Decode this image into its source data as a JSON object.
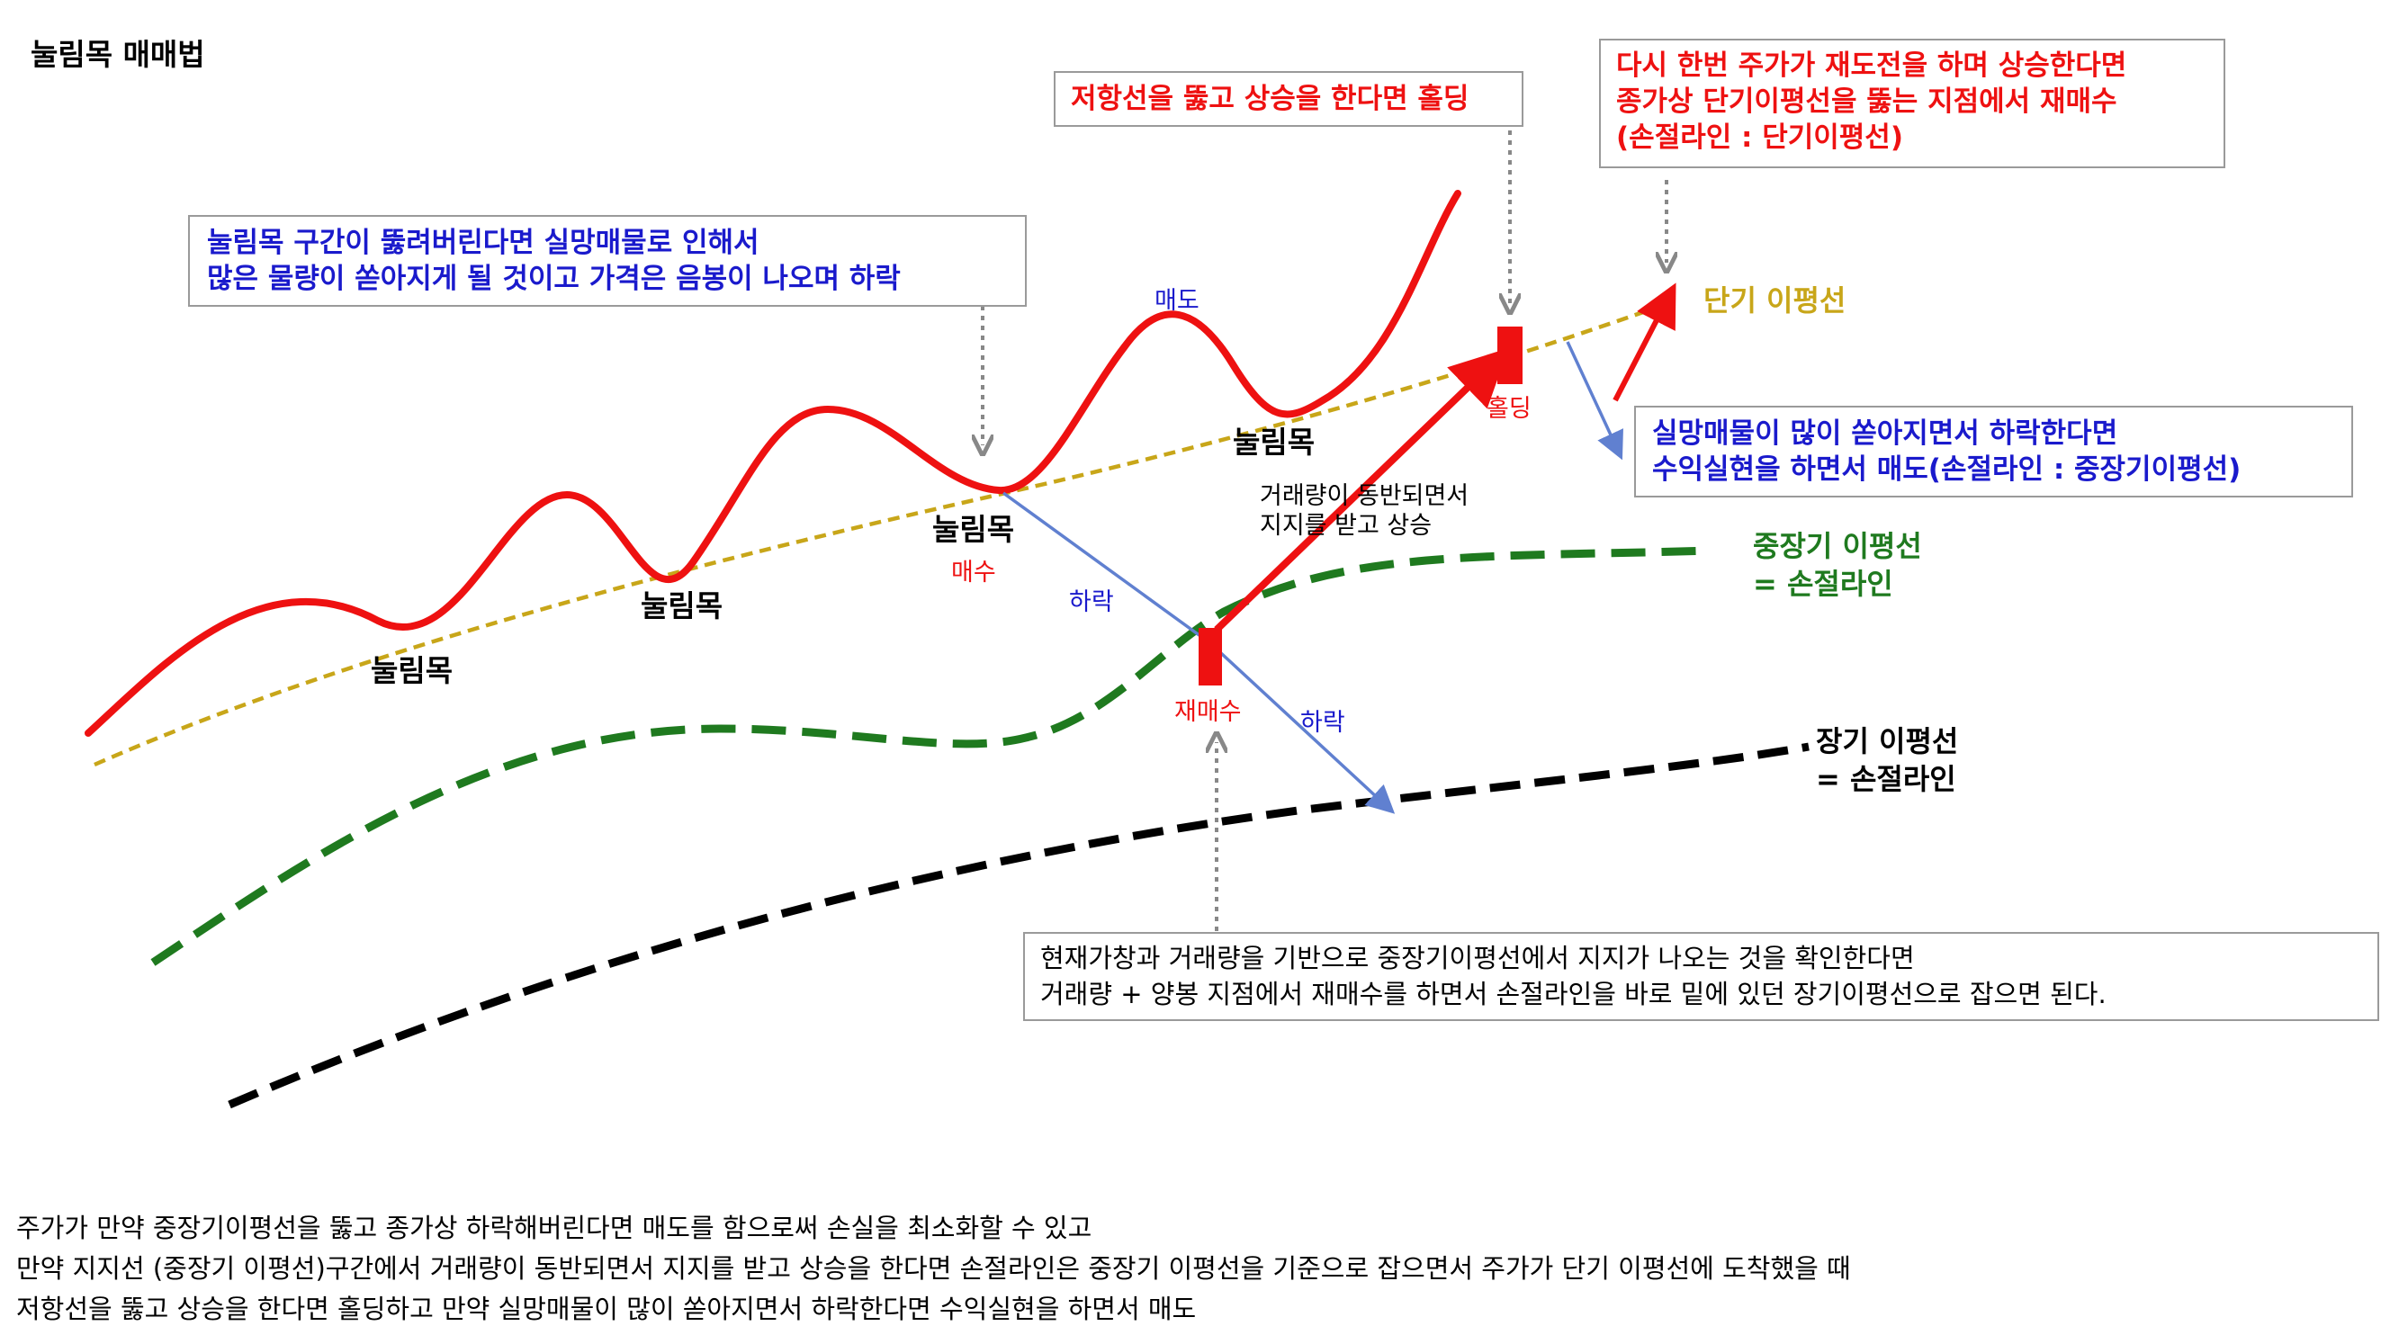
{
  "title": "눌림목 매매법",
  "labels": {
    "pullback": [
      "눌림목",
      "눌림목",
      "눌림목",
      "눌림목"
    ],
    "buy": "매수",
    "sell": "매도",
    "fall_1": "하락",
    "fall_2": "하락",
    "rebuy": "재매수",
    "holding": "홀딩",
    "volume_support": [
      "거래량이 동반되면서",
      "지지를 받고 상승"
    ]
  },
  "lines": {
    "short_term": "단기 이평선",
    "mid_term": [
      "중장기 이평선",
      "= 손절라인"
    ],
    "long_term": [
      "장기 이평선",
      "= 손절라인"
    ]
  },
  "callouts": {
    "pullback_break": [
      "눌림목 구간이 뚫려버린다면 실망매물로 인해서",
      "많은 물량이 쏟아지게 될 것이고 가격은 음봉이 나오며 하락"
    ],
    "resistance_hold": "저항선을 뚫고 상승을 한다면 홀딩",
    "rechallenge": [
      "다시 한번 주가가 재도전을 하며 상승한다면",
      "종가상 단기이평선을 뚫는 지점에서 재매수",
      "(손절라인 : 단기이평선)"
    ],
    "profit_take": [
      "실망매물이 많이 쏟아지면서 하락한다면",
      "수익실현을 하면서 매도(손절라인 : 중장기이평선)"
    ],
    "rebuy_note": [
      "현재가창과 거래량을 기반으로 중장기이평선에서 지지가 나오는 것을 확인한다면",
      "거래량 +  양봉 지점에서 재매수를 하면서 손절라인을 바로 밑에 있던 장기이평선으로 잡으면 된다."
    ]
  },
  "summary": [
    "주가가 만약 중장기이평선을 뚫고 종가상 하락해버린다면 매도를 함으로써 손실을 최소화할 수 있고",
    "만약 지지선 (중장기 이평선)구간에서 거래량이 동반되면서 지지를 받고 상승을 한다면 손절라인은 중장기 이평선을 기준으로 잡으면서 주가가 단기 이평선에 도착했을 때",
    "저항선을 뚫고 상승을 한다면 홀딩하고 만약 실망매물이 많이 쏟아지면서 하락한다면 수익실현을 하면서 매도"
  ],
  "colors": {
    "price": "#ee1111",
    "short_ma": "#c8a619",
    "mid_ma": "#1f7a1f",
    "long_ma": "#000000",
    "fall_arrow": "#6080d0",
    "blue_text": "#1a1acc",
    "red_text": "#ee1111"
  }
}
